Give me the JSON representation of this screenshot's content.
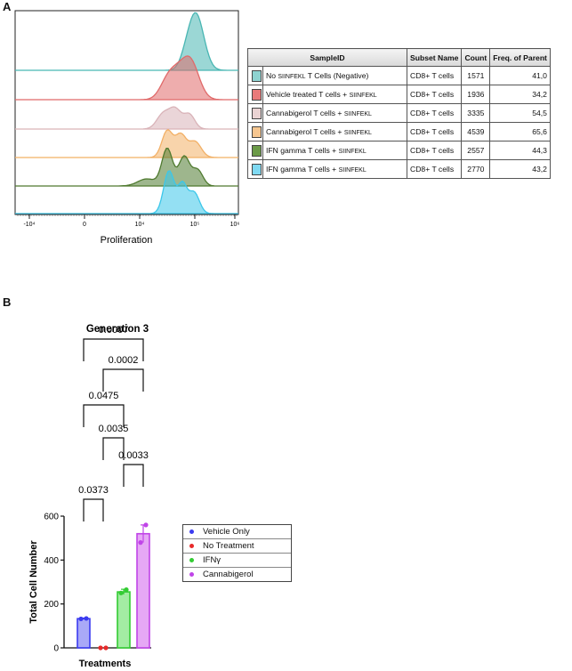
{
  "panels": {
    "a": "A",
    "b": "B"
  },
  "histogram": {
    "xlabel": "Proliferation",
    "x_ticks": [
      "-10⁴",
      "0",
      "10⁴",
      "10⁵",
      "10⁶"
    ],
    "series_colors": [
      "#49b6b3",
      "#e06a6a",
      "#d9b3b8",
      "#f2b066",
      "#4f7a2f",
      "#3cc7ea"
    ]
  },
  "table": {
    "headers": [
      "SampleID",
      "Subset Name",
      "Count",
      "Freq. of Parent"
    ],
    "rows": [
      {
        "color": "#8ed3d1",
        "name_main": "No ",
        "name_small": "SIINFEKL",
        "name_tail": " T Cells (Negative)",
        "subset": "CD8+ T cells",
        "count": "1571",
        "freq": "41,0"
      },
      {
        "color": "#e97a7a",
        "name_main": "Vehicle treated T cells + ",
        "name_small": "SIINFEKL",
        "name_tail": "",
        "subset": "CD8+ T cells",
        "count": "1936",
        "freq": "34,2"
      },
      {
        "color": "#ead3d3",
        "name_main": "Cannabigerol T cells + ",
        "name_small": "SIINFEKL",
        "name_tail": "",
        "subset": "CD8+ T cells",
        "count": "3335",
        "freq": "54,5"
      },
      {
        "color": "#f6c690",
        "name_main": "Cannabigerol T cells + ",
        "name_small": "SIINFEKL",
        "name_tail": "",
        "subset": "CD8+ T cells",
        "count": "4539",
        "freq": "65,6"
      },
      {
        "color": "#6b9a48",
        "name_main": "IFN gamma T cells + ",
        "name_small": "SIINFEKL",
        "name_tail": "",
        "subset": "CD8+ T cells",
        "count": "2557",
        "freq": "44,3"
      },
      {
        "color": "#7fd9f2",
        "name_main": "IFN gamma T cells + ",
        "name_small": "SIINFEKL",
        "name_tail": "",
        "subset": "CD8+ T cells",
        "count": "2770",
        "freq": "43,2"
      }
    ]
  },
  "chart_data": {
    "type": "bar",
    "title": "Generation 3",
    "xlabel": "Treatments",
    "ylabel": "Total Cell Number",
    "ylim": [
      0,
      600
    ],
    "y_ticks": [
      0,
      200,
      400,
      600
    ],
    "categories": [
      "Vehicle Only",
      "No Treatment",
      "IFNγ",
      "Cannabigerol"
    ],
    "values": [
      133,
      0,
      255,
      520
    ],
    "errors": [
      3,
      0,
      12,
      40
    ],
    "points": [
      [
        132,
        134
      ],
      [
        0,
        0
      ],
      [
        250,
        265
      ],
      [
        480,
        560
      ]
    ],
    "colors": [
      "#3b3bf0",
      "#e82a2a",
      "#33cc33",
      "#c044e8"
    ],
    "fills": [
      "#a9a9f7",
      "#f5b0b0",
      "#a3eca3",
      "#e6a8f5"
    ],
    "comparisons": [
      {
        "a": 0,
        "b": 1,
        "p": "0.0373"
      },
      {
        "a": 2,
        "b": 3,
        "p": "0.0033"
      },
      {
        "a": 1,
        "b": 2,
        "p": "0.0035"
      },
      {
        "a": 0,
        "b": 2,
        "p": "0.0475"
      },
      {
        "a": 1,
        "b": 3,
        "p": "0.0002"
      },
      {
        "a": 0,
        "b": 3,
        "p": "0.0007"
      }
    ]
  }
}
